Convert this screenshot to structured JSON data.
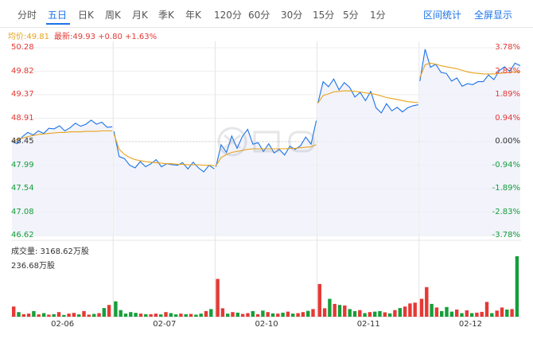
{
  "tabs": [
    {
      "label": "分时",
      "active": false
    },
    {
      "label": "五日",
      "active": true
    },
    {
      "label": "日K",
      "active": false
    },
    {
      "label": "周K",
      "active": false
    },
    {
      "label": "月K",
      "active": false
    },
    {
      "label": "季K",
      "active": false
    },
    {
      "label": "年K",
      "active": false
    },
    {
      "label": "120分",
      "active": false
    },
    {
      "label": "60分",
      "active": false
    },
    {
      "label": "30分",
      "active": false
    },
    {
      "label": "15分",
      "active": false
    },
    {
      "label": "5分",
      "active": false
    },
    {
      "label": "1分",
      "active": false
    }
  ],
  "actions": {
    "range_stats": "区间统计",
    "fullscreen": "全屏显示"
  },
  "info": {
    "avg": "均价:49.81",
    "last": "最新:49.93 +0.80 +1.63%"
  },
  "colors": {
    "up": "#e53935",
    "down": "#159f3a",
    "price": "#1a73e8",
    "avg": "#e8a21a",
    "accent": "#1a73e8"
  },
  "price_axis": [
    "50.28",
    "49.82",
    "49.37",
    "48.91",
    "48.45",
    "47.99",
    "47.54",
    "47.08",
    "46.62"
  ],
  "pct_axis": [
    "3.78%",
    "2.83%",
    "1.89%",
    "0.94%",
    "0.00%",
    "-0.94%",
    "-1.89%",
    "-2.83%",
    "-3.78%"
  ],
  "volume": {
    "title": "成交量: 3168.62万股",
    "max": "236.68万股"
  },
  "chart_data": {
    "type": "line",
    "days": [
      "02-06",
      "02-07",
      "02-10",
      "02-11",
      "02-12"
    ],
    "ylim": [
      46.62,
      50.28
    ],
    "prev_close": 48.45,
    "series": [
      {
        "name": "price",
        "day_values": [
          [
            48.45,
            48.41,
            48.55,
            48.63,
            48.58,
            48.66,
            48.61,
            48.71,
            48.7,
            48.76,
            48.66,
            48.72,
            48.81,
            48.75,
            48.79,
            48.87,
            48.79,
            48.83,
            48.73,
            48.74
          ],
          [
            48.65,
            48.16,
            48.12,
            47.99,
            47.94,
            48.06,
            47.96,
            48.02,
            48.1,
            47.96,
            48.02,
            48.0,
            47.99,
            48.04,
            47.92,
            48.05,
            47.94,
            47.86,
            47.99,
            47.92
          ],
          [
            47.96,
            48.39,
            48.24,
            48.56,
            48.32,
            48.55,
            48.69,
            48.4,
            48.43,
            48.26,
            48.41,
            48.23,
            48.3,
            48.19,
            48.36,
            48.3,
            48.37,
            48.54,
            48.4,
            48.86
          ],
          [
            49.2,
            49.62,
            49.52,
            49.67,
            49.46,
            49.6,
            49.51,
            49.32,
            49.41,
            49.25,
            49.43,
            49.11,
            49.01,
            49.19,
            49.05,
            49.12,
            49.03,
            49.11,
            49.15,
            49.17
          ],
          [
            49.63,
            50.25,
            49.9,
            49.96,
            49.8,
            49.78,
            49.63,
            49.69,
            49.53,
            49.58,
            49.56,
            49.62,
            49.62,
            49.75,
            49.66,
            49.83,
            49.91,
            49.82,
            49.98,
            49.93
          ]
        ]
      },
      {
        "name": "avg",
        "day_values": [
          [
            48.45,
            48.49,
            48.52,
            48.55,
            48.57,
            48.59,
            48.6,
            48.61,
            48.62,
            48.63,
            48.63,
            48.64,
            48.64,
            48.64,
            48.65,
            48.65,
            48.65,
            48.66,
            48.66,
            48.66
          ],
          [
            48.6,
            48.3,
            48.2,
            48.14,
            48.1,
            48.08,
            48.06,
            48.05,
            48.04,
            48.03,
            48.02,
            48.02,
            48.01,
            48.01,
            48.0,
            48.0,
            48.0,
            47.99,
            47.99,
            47.98
          ],
          [
            47.98,
            48.14,
            48.2,
            48.24,
            48.26,
            48.28,
            48.3,
            48.31,
            48.31,
            48.31,
            48.31,
            48.31,
            48.31,
            48.31,
            48.32,
            48.32,
            48.33,
            48.34,
            48.35,
            48.39
          ],
          [
            49.2,
            49.35,
            49.38,
            49.42,
            49.43,
            49.44,
            49.44,
            49.43,
            49.42,
            49.4,
            49.39,
            49.37,
            49.34,
            49.31,
            49.29,
            49.27,
            49.25,
            49.23,
            49.22,
            49.21
          ],
          [
            49.7,
            49.95,
            49.98,
            49.96,
            49.93,
            49.91,
            49.89,
            49.87,
            49.84,
            49.81,
            49.79,
            49.78,
            49.77,
            49.77,
            49.77,
            49.78,
            49.79,
            49.8,
            49.81,
            49.81
          ]
        ]
      }
    ],
    "volume_unit": "万股",
    "volume_day_values": [
      [
        40,
        18,
        10,
        12,
        22,
        9,
        14,
        8,
        10,
        18,
        7,
        12,
        15,
        9,
        22,
        8,
        11,
        14,
        34,
        46
      ],
      [
        60,
        26,
        12,
        18,
        15,
        12,
        10,
        10,
        12,
        9,
        18,
        14,
        9,
        12,
        10,
        11,
        8,
        12,
        22,
        30
      ],
      [
        148,
        33,
        12,
        18,
        16,
        11,
        14,
        22,
        10,
        24,
        18,
        13,
        12,
        16,
        20,
        12,
        14,
        18,
        23,
        30
      ],
      [
        128,
        33,
        70,
        50,
        46,
        44,
        30,
        22,
        26,
        14,
        18,
        20,
        22,
        17,
        13,
        26,
        34,
        40,
        52,
        55
      ],
      [
        70,
        116,
        50,
        36,
        22,
        38,
        20,
        28,
        14,
        25,
        14,
        16,
        19,
        58,
        14,
        24,
        36,
        28,
        30,
        236.68
      ]
    ]
  }
}
